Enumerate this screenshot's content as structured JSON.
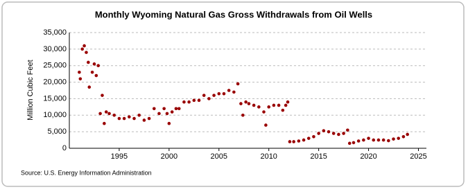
{
  "chart_data": {
    "type": "scatter",
    "title": "Monthly Wyoming Natural Gas Gross Withdrawals from Oil Wells",
    "y_label": "Million Cubic Feet",
    "source": "Source: U.S. Energy Information Administration",
    "color": "#990000",
    "grid": true,
    "xlim": [
      1990,
      2025.8
    ],
    "xticks": [
      1995,
      2000,
      2005,
      2010,
      2015,
      2020,
      2025
    ],
    "ylim": [
      0,
      35000
    ],
    "yticks": [
      0,
      {
        "value": 5000,
        "label": "5,000"
      },
      {
        "value": 10000,
        "label": "10,000"
      },
      {
        "value": 15000,
        "label": "15,000"
      },
      {
        "value": 20000,
        "label": "20,000"
      },
      {
        "value": 25000,
        "label": "25,000"
      },
      {
        "value": 30000,
        "label": "30,000"
      },
      {
        "value": 35000,
        "label": "35,000"
      }
    ],
    "x": [
      1991.0,
      1991.1,
      1991.3,
      1991.5,
      1991.7,
      1991.9,
      1992.0,
      1992.3,
      1992.5,
      1992.7,
      1992.9,
      1993.1,
      1993.3,
      1993.5,
      1993.7,
      1994.0,
      1994.5,
      1995.0,
      1995.5,
      1996.0,
      1996.5,
      1997.0,
      1997.5,
      1998.0,
      1998.5,
      1999.0,
      1999.5,
      1999.8,
      2000.0,
      2000.3,
      2000.7,
      2001.0,
      2001.5,
      2002.0,
      2002.5,
      2003.0,
      2003.5,
      2004.0,
      2004.5,
      2005.0,
      2005.5,
      2006.0,
      2006.5,
      2006.9,
      2007.2,
      2007.4,
      2007.7,
      2008.0,
      2008.5,
      2009.0,
      2009.5,
      2009.7,
      2010.0,
      2010.5,
      2011.0,
      2011.4,
      2011.7,
      2011.9,
      2012.1,
      2012.5,
      2013.0,
      2013.5,
      2014.0,
      2014.5,
      2015.0,
      2015.5,
      2016.0,
      2016.5,
      2017.0,
      2017.5,
      2017.9,
      2018.1,
      2018.5,
      2019.0,
      2019.5,
      2020.0,
      2020.5,
      2021.0,
      2021.5,
      2022.0,
      2022.5,
      2023.0,
      2023.5,
      2023.9
    ],
    "values": [
      23000,
      21000,
      30000,
      31000,
      29000,
      26000,
      18500,
      23000,
      25500,
      22000,
      25000,
      10500,
      16000,
      7500,
      11000,
      10500,
      10000,
      9000,
      9000,
      9500,
      9000,
      10000,
      8500,
      9000,
      12000,
      10500,
      12000,
      10500,
      7500,
      11000,
      12000,
      12000,
      14000,
      14000,
      14500,
      14500,
      16000,
      15000,
      16000,
      16500,
      16500,
      17500,
      17000,
      19500,
      13500,
      10000,
      14000,
      13500,
      13000,
      12500,
      11000,
      7000,
      12500,
      13000,
      13000,
      11500,
      13000,
      14000,
      2000,
      2000,
      2200,
      2500,
      3000,
      3500,
      4500,
      5300,
      5000,
      4500,
      4200,
      4500,
      5500,
      1500,
      1700,
      2200,
      2500,
      3000,
      2500,
      2500,
      2500,
      2300,
      2800,
      3000,
      3500,
      4200
    ]
  }
}
